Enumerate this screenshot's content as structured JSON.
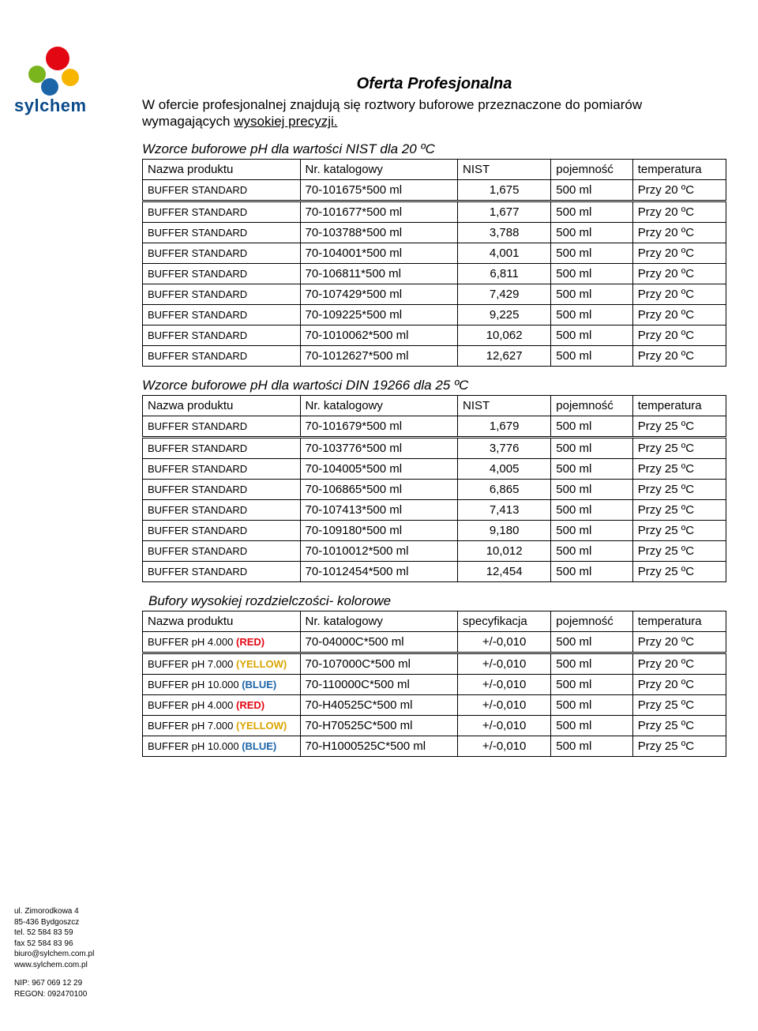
{
  "logo": {
    "brand": "sylchem"
  },
  "title": "Oferta Profesjonalna",
  "intro_pre": "W ofercie profesjonalnej znajdują się roztwory buforowe przeznaczone do pomiarów wymagających ",
  "intro_u": "wysokiej precyzji.",
  "section1": {
    "title": "Wzorce buforowe pH dla wartości NIST dla 20 ºC",
    "headers": [
      "Nazwa produktu",
      "Nr. katalogowy",
      "NIST",
      "pojemność",
      "temperatura"
    ],
    "rows": [
      [
        "BUFFER STANDARD",
        "70-101675*500 ml",
        "1,675",
        "500 ml",
        "Przy 20 ºC"
      ],
      [
        "BUFFER STANDARD",
        "70-101677*500 ml",
        "1,677",
        "500 ml",
        "Przy 20 ºC"
      ],
      [
        "BUFFER STANDARD",
        "70-103788*500 ml",
        "3,788",
        "500 ml",
        "Przy 20 ºC"
      ],
      [
        "BUFFER STANDARD",
        "70-104001*500 ml",
        "4,001",
        "500 ml",
        "Przy 20 ºC"
      ],
      [
        "BUFFER STANDARD",
        "70-106811*500 ml",
        "6,811",
        "500 ml",
        "Przy 20 ºC"
      ],
      [
        "BUFFER STANDARD",
        "70-107429*500 ml",
        "7,429",
        "500 ml",
        "Przy 20 ºC"
      ],
      [
        "BUFFER STANDARD",
        "70-109225*500 ml",
        "9,225",
        "500 ml",
        "Przy 20 ºC"
      ],
      [
        "BUFFER STANDARD",
        "70-1010062*500 ml",
        "10,062",
        "500 ml",
        "Przy 20 ºC"
      ],
      [
        "BUFFER STANDARD",
        "70-1012627*500 ml",
        "12,627",
        "500 ml",
        "Przy 20 ºC"
      ]
    ]
  },
  "section2": {
    "title": "Wzorce buforowe pH dla wartości DIN 19266 dla 25 ºC",
    "headers": [
      "Nazwa produktu",
      "Nr. katalogowy",
      "NIST",
      "pojemność",
      "temperatura"
    ],
    "rows": [
      [
        "BUFFER STANDARD",
        "70-101679*500 ml",
        "1,679",
        "500 ml",
        "Przy 25 ºC"
      ],
      [
        "BUFFER STANDARD",
        "70-103776*500 ml",
        "3,776",
        "500 ml",
        "Przy 25 ºC"
      ],
      [
        "BUFFER STANDARD",
        "70-104005*500 ml",
        "4,005",
        "500 ml",
        "Przy 25 ºC"
      ],
      [
        "BUFFER STANDARD",
        "70-106865*500 ml",
        "6,865",
        "500 ml",
        "Przy 25 ºC"
      ],
      [
        "BUFFER STANDARD",
        "70-107413*500 ml",
        "7,413",
        "500 ml",
        "Przy 25 ºC"
      ],
      [
        "BUFFER STANDARD",
        "70-109180*500 ml",
        "9,180",
        "500 ml",
        "Przy 25 ºC"
      ],
      [
        "BUFFER STANDARD",
        "70-1010012*500 ml",
        "10,012",
        "500 ml",
        "Przy 25 ºC"
      ],
      [
        "BUFFER STANDARD",
        "70-1012454*500 ml",
        "12,454",
        "500 ml",
        "Przy 25 ºC"
      ]
    ]
  },
  "section3": {
    "title": "Bufory wysokiej rozdzielczości- kolorowe",
    "headers": [
      "Nazwa produktu",
      "Nr. katalogowy",
      "specyfikacja",
      "pojemność",
      "temperatura"
    ],
    "rows": [
      {
        "name_pre": "BUFFER pH 4.000 ",
        "name_col": "(RED)",
        "cls": "c-red",
        "cat": "70-04000C*500 ml",
        "spec": "+/-0,010",
        "cap": "500 ml",
        "temp": "Przy 20 ºC"
      },
      {
        "name_pre": "BUFFER pH 7.000 ",
        "name_col": "(YELLOW)",
        "cls": "c-yellow",
        "cat": "70-107000C*500 ml",
        "spec": "+/-0,010",
        "cap": "500 ml",
        "temp": "Przy 20 ºC"
      },
      {
        "name_pre": "BUFFER pH 10.000 ",
        "name_col": "(BLUE)",
        "cls": "c-blue",
        "cat": "70-110000C*500 ml",
        "spec": "+/-0,010",
        "cap": "500 ml",
        "temp": "Przy 20 ºC"
      },
      {
        "name_pre": "BUFFER pH 4.000 ",
        "name_col": "(RED)",
        "cls": "c-red",
        "cat": "70-H40525C*500 ml",
        "spec": "+/-0,010",
        "cap": "500 ml",
        "temp": "Przy 25 ºC"
      },
      {
        "name_pre": "BUFFER pH 7.000 ",
        "name_col": "(YELLOW)",
        "cls": "c-yellow",
        "cat": "70-H70525C*500 ml",
        "spec": "+/-0,010",
        "cap": "500 ml",
        "temp": "Przy 25 ºC"
      },
      {
        "name_pre": "BUFFER pH 10.000 ",
        "name_col": "(BLUE)",
        "cls": "c-blue",
        "cat": "70-H1000525C*500 ml",
        "spec": "+/-0,010",
        "cap": "500 ml",
        "temp": "Przy 25 ºC"
      }
    ]
  },
  "footer": {
    "addr1": "ul. Zimorodkowa 4",
    "addr2": "85-436 Bydgoszcz",
    "tel": "tel. 52 584 83 59",
    "fax": "fax 52 584 83 96",
    "email": "biuro@sylchem.com.pl",
    "web": "www.sylchem.com.pl",
    "nip": "NIP: 967 069 12 29",
    "regon": "REGON: 092470100"
  },
  "col_widths": {
    "c0": "27%",
    "c1": "27%",
    "c2": "16%",
    "c3": "14%",
    "c4": "16%"
  }
}
